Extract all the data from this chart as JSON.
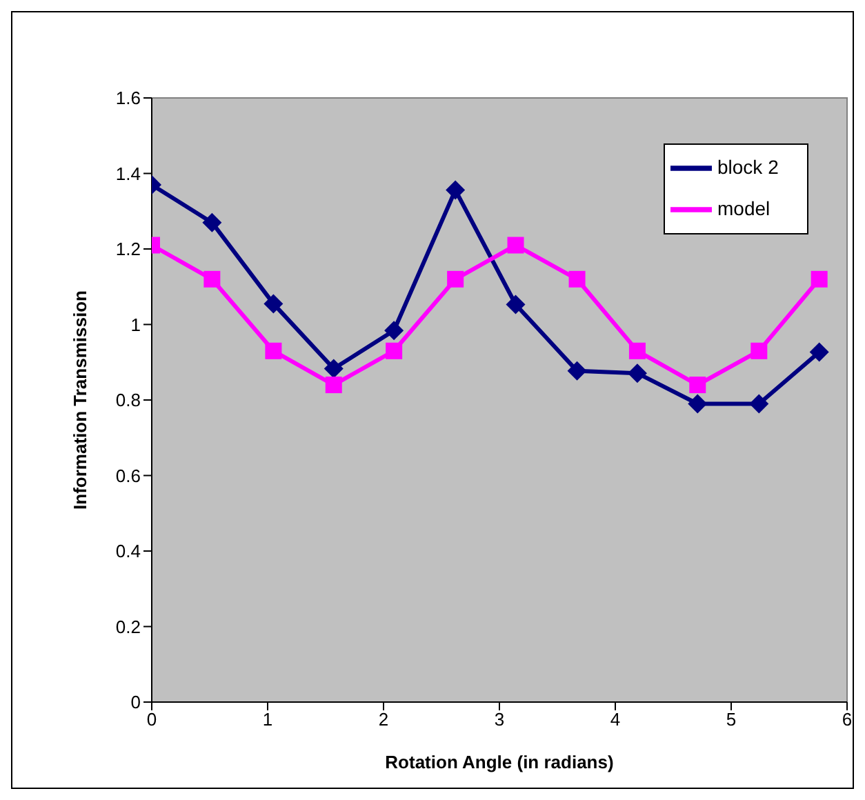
{
  "chart_data": {
    "type": "line",
    "xlabel": "Rotation Angle (in radians)",
    "ylabel": "Information Transmission",
    "x": [
      0,
      0.52,
      1.05,
      1.57,
      2.09,
      2.62,
      3.14,
      3.67,
      4.19,
      4.71,
      5.24,
      5.76
    ],
    "series": [
      {
        "name": "block 2",
        "color": "#000080",
        "marker": "diamond",
        "values": [
          1.37,
          1.27,
          1.055,
          0.883,
          0.984,
          1.356,
          1.053,
          0.877,
          0.871,
          0.79,
          0.79,
          0.927
        ]
      },
      {
        "name": "model",
        "color": "#ff00ff",
        "marker": "square",
        "values": [
          1.21,
          1.12,
          0.93,
          0.84,
          0.93,
          1.12,
          1.21,
          1.12,
          0.93,
          0.84,
          0.93,
          1.12
        ]
      }
    ],
    "xlim": [
      0,
      6
    ],
    "xticks": [
      0,
      1,
      2,
      3,
      4,
      5,
      6
    ],
    "ylim": [
      0,
      1.6
    ],
    "yticks": [
      0,
      0.2,
      0.4,
      0.6,
      0.8,
      1,
      1.2,
      1.4,
      1.6
    ],
    "legend": "top right",
    "line_style": "solid"
  }
}
